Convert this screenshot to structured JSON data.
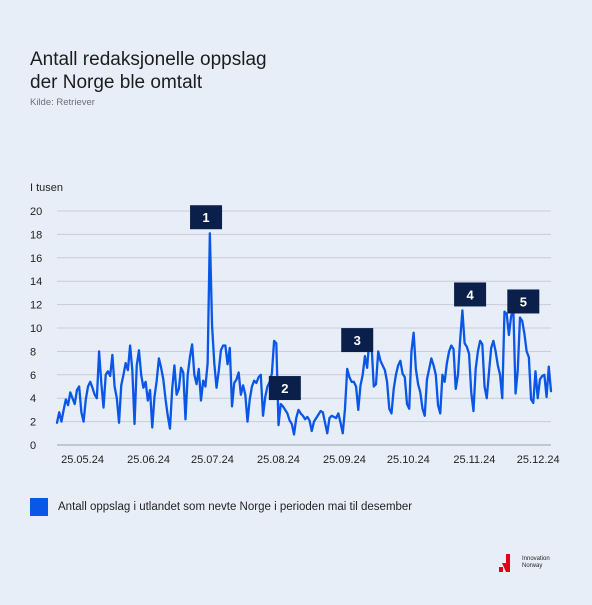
{
  "header": {
    "title_line1": "Antall redaksjonelle oppslag",
    "title_line2": "der Norge ble omtalt",
    "source": "Kilde: Retriever"
  },
  "chart_data": {
    "type": "line",
    "title": "Antall redaksjonelle oppslag der Norge ble omtalt",
    "ylabel": "I tusen",
    "xlabel": "",
    "ylim": [
      0,
      20
    ],
    "yticks": [
      0,
      2,
      4,
      6,
      8,
      10,
      12,
      14,
      16,
      18,
      20
    ],
    "grid": true,
    "x_start": "2024-05-13",
    "x_end": "2024-12-31",
    "xtick_labels": [
      {
        "label": "25.05.24",
        "date": "2024-05-25"
      },
      {
        "label": "25.06.24",
        "date": "2024-06-25"
      },
      {
        "label": "25.07.24",
        "date": "2024-07-25"
      },
      {
        "label": "25.08.24",
        "date": "2024-08-25"
      },
      {
        "label": "25.09.24",
        "date": "2024-09-25"
      },
      {
        "label": "25.10.24",
        "date": "2024-10-25"
      },
      {
        "label": "25.11.24",
        "date": "2024-11-25"
      },
      {
        "label": "25.12.24",
        "date": "2024-12-25"
      }
    ],
    "series": [
      {
        "name": "Antall oppslag i utlandet som nevte Norge i perioden mai til desember",
        "color": "#0a56e6",
        "values": [
          1.9,
          2.8,
          2.0,
          3.0,
          3.9,
          3.4,
          4.5,
          4.0,
          3.5,
          4.7,
          5.0,
          2.8,
          2.0,
          3.9,
          5.0,
          5.4,
          4.9,
          4.3,
          4.0,
          8.0,
          5.3,
          3.2,
          6.0,
          6.3,
          5.9,
          7.7,
          5.0,
          4.0,
          1.9,
          5.1,
          6.0,
          7.0,
          6.4,
          8.5,
          6.4,
          1.8,
          6.8,
          8.1,
          6.0,
          4.9,
          5.4,
          3.8,
          4.7,
          1.5,
          4.1,
          5.5,
          7.4,
          6.6,
          5.6,
          3.9,
          2.5,
          1.4,
          4.8,
          6.8,
          4.3,
          4.8,
          6.6,
          6.2,
          2.2,
          6.0,
          7.5,
          8.6,
          6.0,
          5.2,
          6.5,
          3.8,
          5.5,
          5.0,
          7.0,
          18.1,
          10.2,
          7.0,
          4.9,
          6.3,
          8.1,
          8.5,
          8.5,
          6.9,
          8.3,
          3.3,
          5.3,
          5.6,
          6.2,
          4.3,
          5.1,
          4.3,
          2.0,
          3.9,
          5.0,
          5.5,
          5.3,
          5.8,
          6.0,
          2.5,
          4.1,
          5.0,
          5.4,
          6.1,
          8.9,
          8.7,
          1.7,
          3.5,
          3.3,
          3.0,
          2.7,
          2.1,
          1.8,
          0.9,
          2.3,
          3.0,
          2.7,
          2.5,
          2.2,
          2.4,
          2.1,
          1.2,
          2.0,
          2.3,
          2.6,
          2.9,
          2.8,
          1.9,
          1.0,
          2.3,
          2.5,
          2.4,
          2.3,
          2.7,
          1.9,
          1.0,
          3.1,
          6.5,
          5.8,
          5.4,
          5.4,
          5.0,
          3.0,
          5.1,
          6.0,
          7.6,
          6.6,
          9.0,
          8.5,
          5.0,
          5.2,
          8.0,
          7.2,
          6.8,
          6.4,
          5.4,
          3.1,
          2.7,
          4.8,
          6.0,
          6.8,
          7.2,
          6.1,
          5.8,
          3.5,
          3.1,
          8.0,
          9.6,
          6.5,
          5.2,
          4.5,
          3.1,
          2.5,
          5.6,
          6.5,
          7.4,
          6.8,
          6.0,
          3.4,
          2.7,
          6.0,
          5.4,
          7.0,
          8.0,
          8.5,
          8.2,
          4.8,
          6.0,
          9.0,
          11.5,
          8.7,
          8.4,
          7.8,
          4.5,
          2.9,
          6.5,
          8.0,
          8.9,
          8.6,
          5.0,
          4.0,
          6.2,
          8.3,
          8.9,
          8.0,
          6.8,
          6.0,
          4.0,
          11.4,
          11.2,
          9.4,
          11.0,
          11.6,
          4.4,
          6.4,
          10.9,
          10.6,
          9.5,
          8.0,
          7.5,
          3.9,
          3.6,
          6.3,
          4.0,
          5.6,
          5.9,
          6.0,
          4.1,
          6.7,
          4.6
        ]
      }
    ],
    "annotations": [
      {
        "label": "1",
        "date": "2024-07-22"
      },
      {
        "label": "2",
        "date": "2024-08-28"
      },
      {
        "label": "3",
        "date": "2024-10-01"
      },
      {
        "label": "4",
        "date": "2024-11-23"
      },
      {
        "label": "5",
        "date": "2024-12-18"
      }
    ]
  },
  "legend": {
    "label": "Antall oppslag i utlandet som nevte Norge i perioden mai til desember",
    "color": "#0a56e6"
  },
  "branding": {
    "logo_line1": "Innovation",
    "logo_line2": "Norway",
    "logo_color": "#e0001b"
  }
}
